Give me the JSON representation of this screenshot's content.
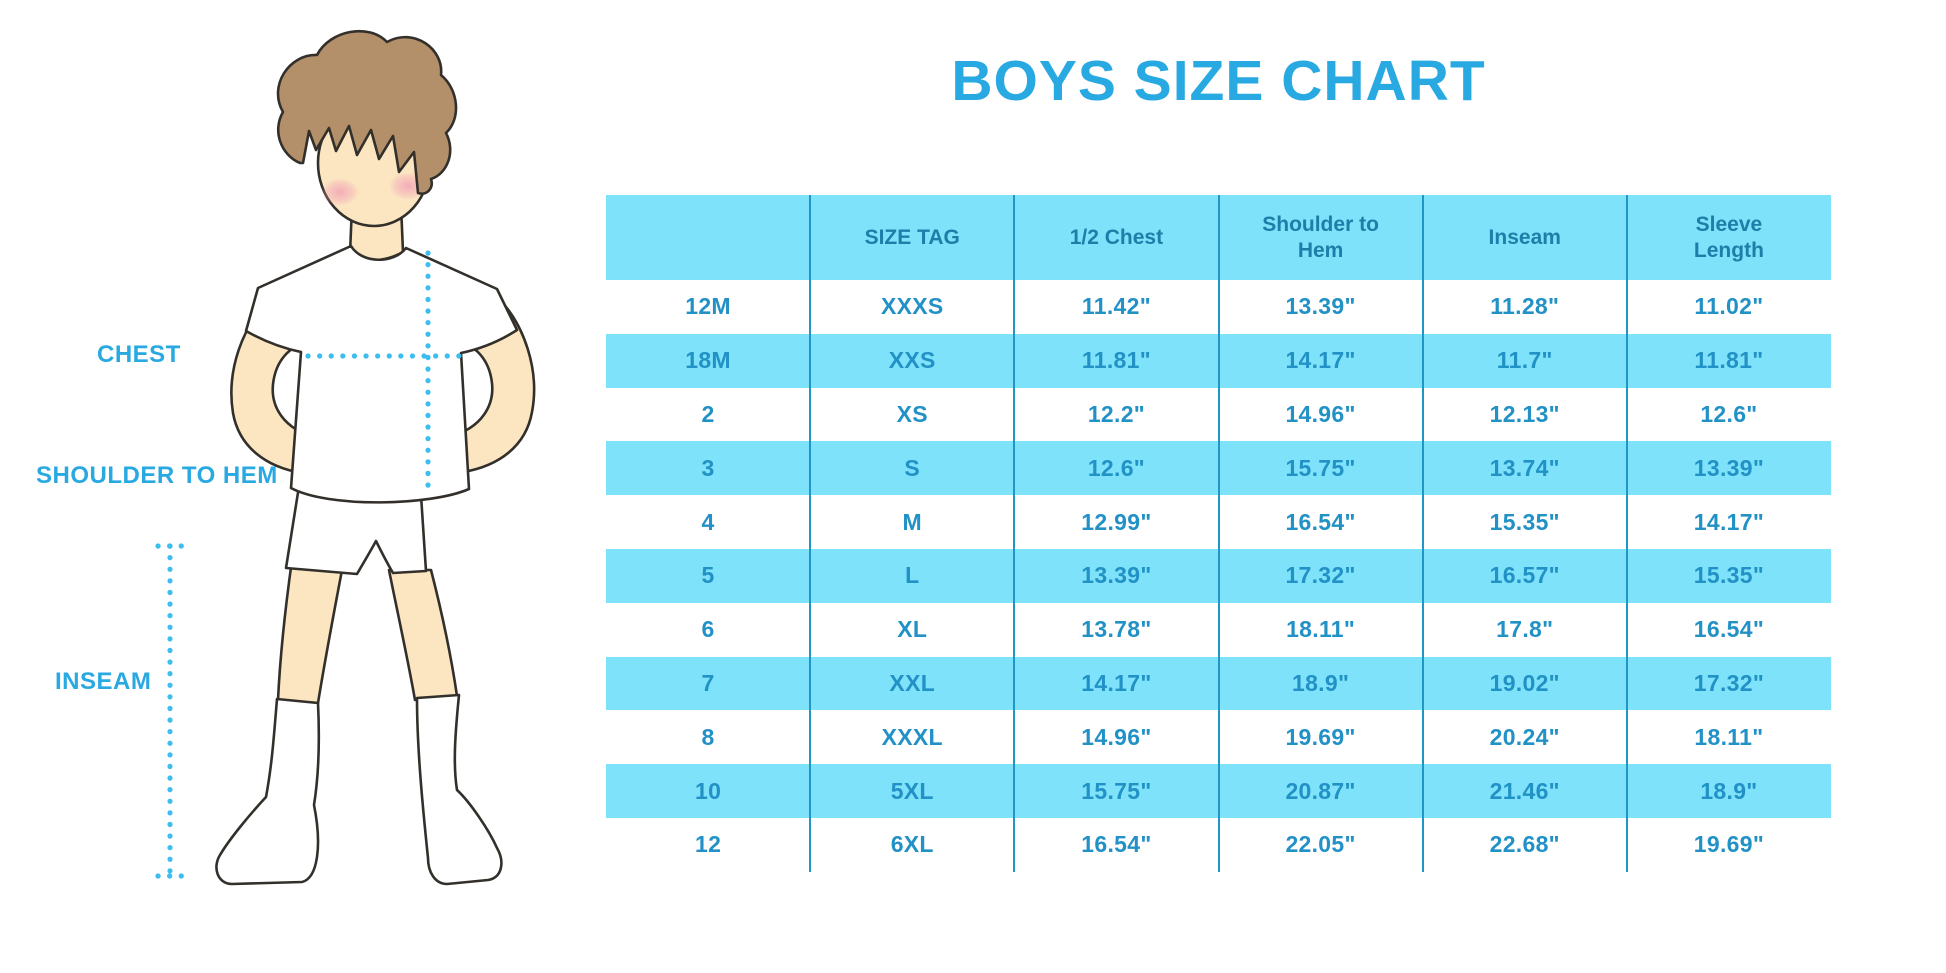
{
  "title": "BOYS SIZE CHART",
  "colors": {
    "cyan": "#7DE2FA",
    "blue": "#29A9E1",
    "header": "#1E7EA8",
    "value": "#2191C6",
    "line": "#2196C4",
    "dot": "#3DBEEF"
  },
  "figure": {
    "labels": {
      "chest": "CHEST",
      "shoulder_to_hem": "SHOULDER TO HEM",
      "inseam": "INSEAM"
    }
  },
  "chart_data": {
    "type": "table",
    "title": "BOYS SIZE CHART",
    "columns": [
      "",
      "SIZE TAG",
      "1/2 Chest",
      "Shoulder to Hem",
      "Inseam",
      "Sleeve Length"
    ],
    "rows": [
      [
        "12M",
        "XXXS",
        "11.42\"",
        "13.39\"",
        "11.28\"",
        "11.02\""
      ],
      [
        "18M",
        "XXS",
        "11.81\"",
        "14.17\"",
        "11.7\"",
        "11.81\""
      ],
      [
        "2",
        "XS",
        "12.2\"",
        "14.96\"",
        "12.13\"",
        "12.6\""
      ],
      [
        "3",
        "S",
        "12.6\"",
        "15.75\"",
        "13.74\"",
        "13.39\""
      ],
      [
        "4",
        "M",
        "12.99\"",
        "16.54\"",
        "15.35\"",
        "14.17\""
      ],
      [
        "5",
        "L",
        "13.39\"",
        "17.32\"",
        "16.57\"",
        "15.35\""
      ],
      [
        "6",
        "XL",
        "13.78\"",
        "18.11\"",
        "17.8\"",
        "16.54\""
      ],
      [
        "7",
        "XXL",
        "14.17\"",
        "18.9\"",
        "19.02\"",
        "17.32\""
      ],
      [
        "8",
        "XXXL",
        "14.96\"",
        "19.69\"",
        "20.24\"",
        "18.11\""
      ],
      [
        "10",
        "5XL",
        "15.75\"",
        "20.87\"",
        "21.46\"",
        "18.9\""
      ],
      [
        "12",
        "6XL",
        "16.54\"",
        "22.05\"",
        "22.68\"",
        "19.69\""
      ]
    ],
    "units": "inches",
    "striping": "alternating rows: white / light cyan, header light cyan",
    "grid": "vertical column separators only"
  }
}
